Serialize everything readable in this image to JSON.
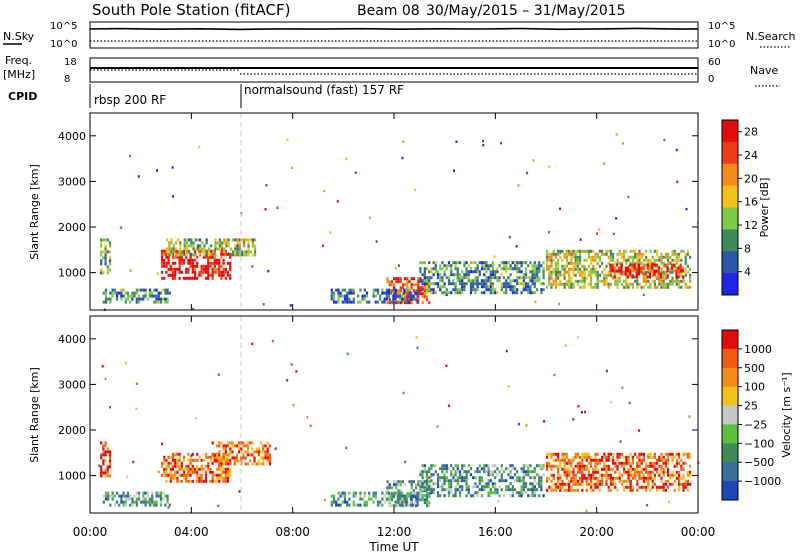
{
  "title": {
    "station": "South Pole Station (fitACF)",
    "beam": "Beam 08",
    "dates": "30/May/2015 – 31/May/2015"
  },
  "noise_panel": {
    "left_label": "N.Sky",
    "left_ticks": [
      "10^5",
      "10^0"
    ],
    "right_ticks": [
      "10^5",
      "10^0"
    ],
    "right_label": "N.Search"
  },
  "freq_panel": {
    "left_label_line1": "Freq.",
    "left_label_line2": "[MHz]",
    "left_ticks": [
      "18",
      "8"
    ],
    "right_ticks": [
      "60",
      "0"
    ],
    "right_label": "Nave"
  },
  "cpid": {
    "label": "CPID",
    "segments": [
      {
        "name": "rbsp 200 RF",
        "start_hour": 0
      },
      {
        "name": "normalsound (fast) 157 RF",
        "start_hour": 6
      }
    ]
  },
  "x_axis": {
    "label": "Time UT",
    "ticks": [
      "00:00",
      "04:00",
      "08:00",
      "12:00",
      "16:00",
      "20:00",
      "00:00"
    ],
    "range_hours": [
      0,
      24
    ]
  },
  "chart_data": [
    {
      "type": "heatmap",
      "panel": "power",
      "ylabel": "Slant Range [km]",
      "yticks": [
        "1000",
        "2000",
        "3000",
        "4000"
      ],
      "ylim": [
        180,
        4500
      ],
      "colorbar": {
        "label": "Power [dB]",
        "ticks": [
          "4",
          "8",
          "12",
          "16",
          "20",
          "24",
          "28"
        ],
        "range": [
          0,
          30
        ],
        "colors": [
          "#1f25e8",
          "#2e56a8",
          "#3f8a5a",
          "#7ec84a",
          "#f2c21c",
          "#f58a1a",
          "#ef3b18",
          "#e30b0b"
        ]
      },
      "regions": [
        {
          "t": [
            0.4,
            0.9
          ],
          "r": [
            950,
            1750
          ],
          "level": 0.35
        },
        {
          "t": [
            2.8,
            5.6
          ],
          "r": [
            800,
            1500
          ],
          "level": 0.95
        },
        {
          "t": [
            3.0,
            6.6
          ],
          "r": [
            1300,
            1750
          ],
          "level": 0.45
        },
        {
          "t": [
            0.5,
            3.2
          ],
          "r": [
            300,
            650
          ],
          "level": 0.3
        },
        {
          "t": [
            11.7,
            13.5
          ],
          "r": [
            300,
            900
          ],
          "level": 0.85
        },
        {
          "t": [
            13.0,
            18.0
          ],
          "r": [
            500,
            1250
          ],
          "level": 0.3
        },
        {
          "t": [
            18.0,
            23.8
          ],
          "r": [
            600,
            1500
          ],
          "level": 0.5
        },
        {
          "t": [
            20.5,
            23.5
          ],
          "r": [
            850,
            1200
          ],
          "level": 0.9
        },
        {
          "t": [
            9.5,
            13.0
          ],
          "r": [
            300,
            650
          ],
          "level": 0.25
        }
      ]
    },
    {
      "type": "heatmap",
      "panel": "velocity",
      "ylabel": "Slant Range [km]",
      "yticks": [
        "1000",
        "2000",
        "3000",
        "4000"
      ],
      "ylim": [
        180,
        4500
      ],
      "colorbar": {
        "label": "Velocity [m s⁻¹]",
        "ticks": [
          "1000",
          "500",
          "100",
          "25",
          "−25",
          "−100",
          "−500",
          "−1000"
        ],
        "range": [
          -1200,
          1200
        ],
        "colors": [
          "#2046b8",
          "#3a6f9a",
          "#3f8a5a",
          "#56c23e",
          "#c8c8c8",
          "#f2c21c",
          "#f58a1a",
          "#f05a14",
          "#e30b0b"
        ]
      },
      "regions": [
        {
          "t": [
            0.4,
            0.9
          ],
          "r": [
            950,
            1750
          ],
          "level": 0.85
        },
        {
          "t": [
            2.8,
            5.6
          ],
          "r": [
            800,
            1500
          ],
          "level": 0.8
        },
        {
          "t": [
            4.8,
            7.2
          ],
          "r": [
            1200,
            1750
          ],
          "level": 0.8
        },
        {
          "t": [
            0.5,
            3.2
          ],
          "r": [
            300,
            650
          ],
          "level": 0.3
        },
        {
          "t": [
            11.7,
            13.5
          ],
          "r": [
            300,
            900
          ],
          "level": 0.3
        },
        {
          "t": [
            13.0,
            18.0
          ],
          "r": [
            500,
            1250
          ],
          "level": 0.3
        },
        {
          "t": [
            18.0,
            23.8
          ],
          "r": [
            600,
            1500
          ],
          "level": 0.8
        },
        {
          "t": [
            9.5,
            13.0
          ],
          "r": [
            300,
            650
          ],
          "level": 0.3
        }
      ]
    }
  ]
}
